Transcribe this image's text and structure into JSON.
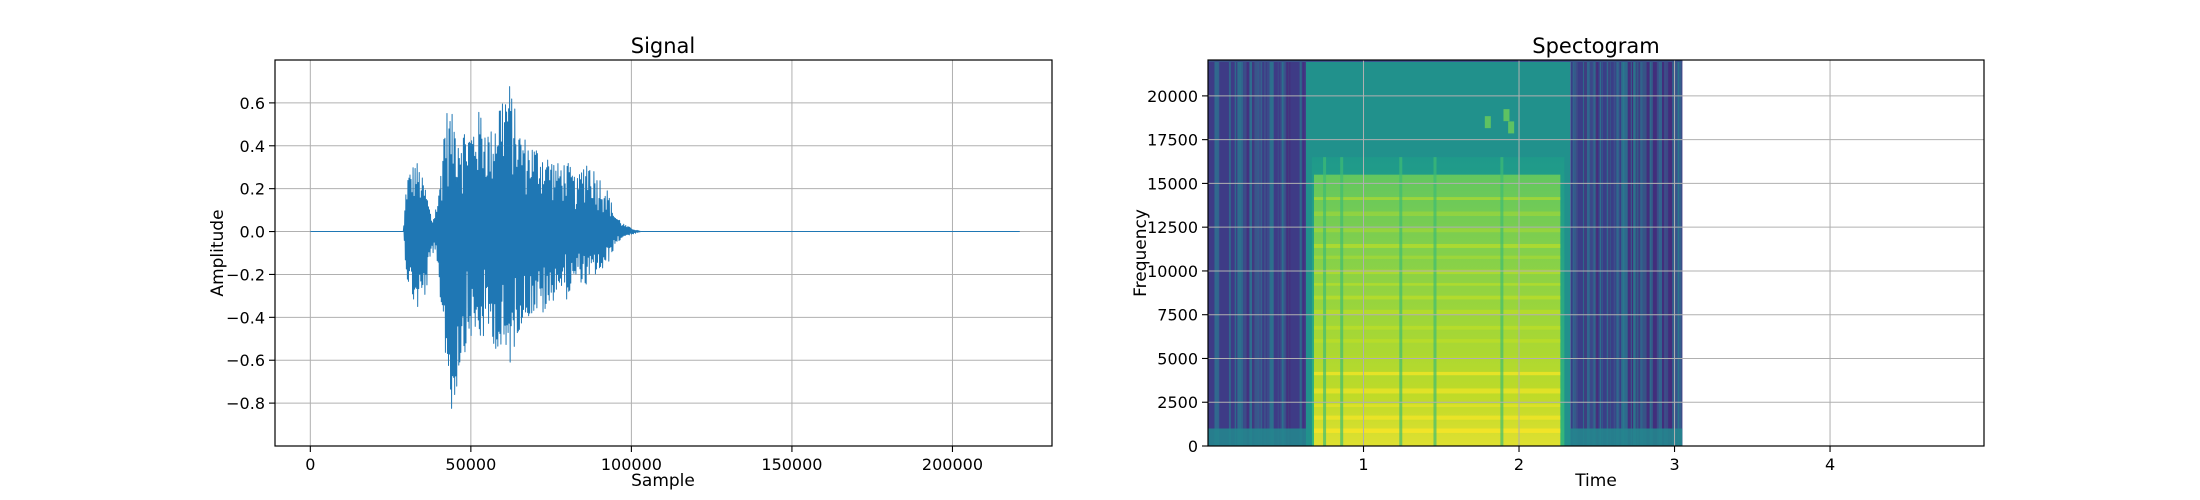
{
  "chart_data": [
    {
      "type": "line",
      "title": "Signal",
      "xlabel": "Sample",
      "ylabel": "Amplitude",
      "xlim": [
        -11000,
        231000
      ],
      "ylim": [
        -1.0,
        0.8
      ],
      "xticks": [
        0,
        50000,
        100000,
        150000,
        200000
      ],
      "xtick_labels": [
        "0",
        "50000",
        "100000",
        "150000",
        "200000"
      ],
      "yticks": [
        -0.8,
        -0.6,
        -0.4,
        -0.2,
        0.0,
        0.2,
        0.4,
        0.6
      ],
      "ytick_labels": [
        "−0.8",
        "−0.6",
        "−0.4",
        "−0.2",
        "0.0",
        "0.2",
        "0.4",
        "0.6"
      ],
      "grid": true,
      "line_color": "#1f77b4",
      "series": [
        {
          "envelope": {
            "x": [
              0,
              29000,
              30000,
              33000,
              36000,
              38000,
              40000,
              42000,
              44000,
              47000,
              50000,
              53000,
              56000,
              59000,
              62000,
              65000,
              68000,
              71000,
              74000,
              77000,
              80000,
              83000,
              86000,
              89000,
              92000,
              95000,
              98000,
              101000,
              103000,
              221000
            ],
            "max": [
              0.0,
              0.0,
              0.26,
              0.34,
              0.2,
              0.05,
              0.18,
              0.58,
              0.55,
              0.5,
              0.48,
              0.58,
              0.46,
              0.64,
              0.7,
              0.48,
              0.42,
              0.4,
              0.36,
              0.32,
              0.33,
              0.24,
              0.36,
              0.28,
              0.22,
              0.08,
              0.03,
              0.01,
              0.0,
              0.0
            ],
            "min": [
              0.0,
              0.0,
              -0.22,
              -0.38,
              -0.3,
              -0.08,
              -0.25,
              -0.56,
              -0.9,
              -0.6,
              -0.5,
              -0.52,
              -0.48,
              -0.6,
              -0.64,
              -0.46,
              -0.4,
              -0.38,
              -0.4,
              -0.26,
              -0.32,
              -0.22,
              -0.26,
              -0.2,
              -0.18,
              -0.06,
              -0.02,
              -0.01,
              0.0,
              0.0
            ]
          }
        }
      ]
    },
    {
      "type": "heatmap",
      "title": "Spectogram",
      "xlabel": "Time",
      "ylabel": "Frequency",
      "xlim": [
        0,
        4.99
      ],
      "ylim": [
        0,
        22050
      ],
      "xticks": [
        1,
        2,
        3,
        4
      ],
      "xtick_labels": [
        "1",
        "2",
        "3",
        "4"
      ],
      "yticks": [
        0,
        2500,
        5000,
        7500,
        10000,
        12500,
        15000,
        17500,
        20000
      ],
      "ytick_labels": [
        "0",
        "2500",
        "5000",
        "7500",
        "10000",
        "12500",
        "15000",
        "17500",
        "20000"
      ],
      "grid": true,
      "data_time_range": [
        0,
        3.05
      ],
      "speech_time_range": [
        0.63,
        2.33
      ],
      "colormap": [
        "#440154",
        "#3b528b",
        "#21918c",
        "#5ec962",
        "#fde725"
      ]
    }
  ]
}
